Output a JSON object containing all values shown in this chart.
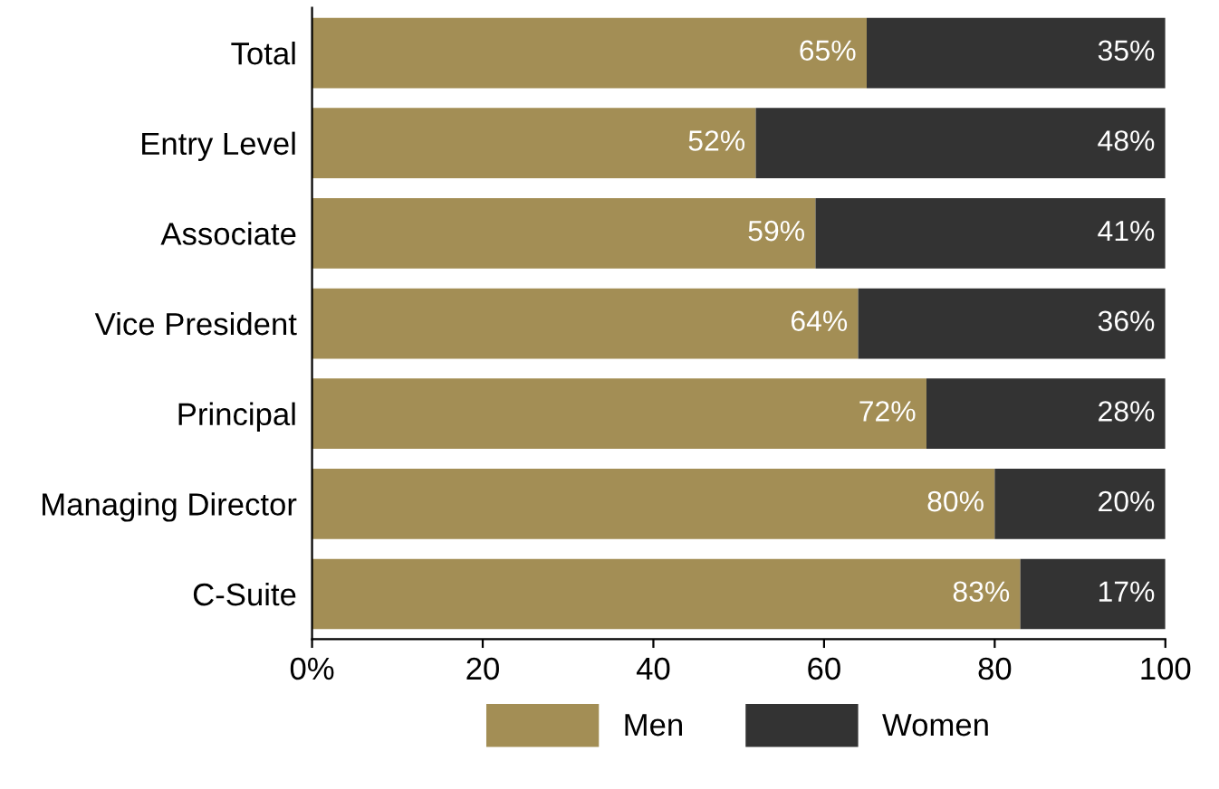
{
  "chart_data": {
    "type": "bar",
    "orientation": "horizontal",
    "stacked": true,
    "categories": [
      "Total",
      "Entry Level",
      "Associate",
      "Vice President",
      "Principal",
      "Managing Director",
      "C-Suite"
    ],
    "series": [
      {
        "name": "Men",
        "color": "#a38e55",
        "values": [
          65,
          52,
          59,
          64,
          72,
          80,
          83
        ],
        "value_labels": [
          "65%",
          "52%",
          "59%",
          "64%",
          "72%",
          "80%",
          "83%"
        ]
      },
      {
        "name": "Women",
        "color": "#333333",
        "values": [
          35,
          48,
          41,
          36,
          28,
          20,
          17
        ],
        "value_labels": [
          "35%",
          "48%",
          "41%",
          "36%",
          "28%",
          "20%",
          "17%"
        ]
      }
    ],
    "xlim": [
      0,
      100
    ],
    "xticks": [
      {
        "value": 0,
        "label": "0%"
      },
      20,
      40,
      60,
      80,
      100
    ],
    "legend": "bottom",
    "grid": false
  }
}
